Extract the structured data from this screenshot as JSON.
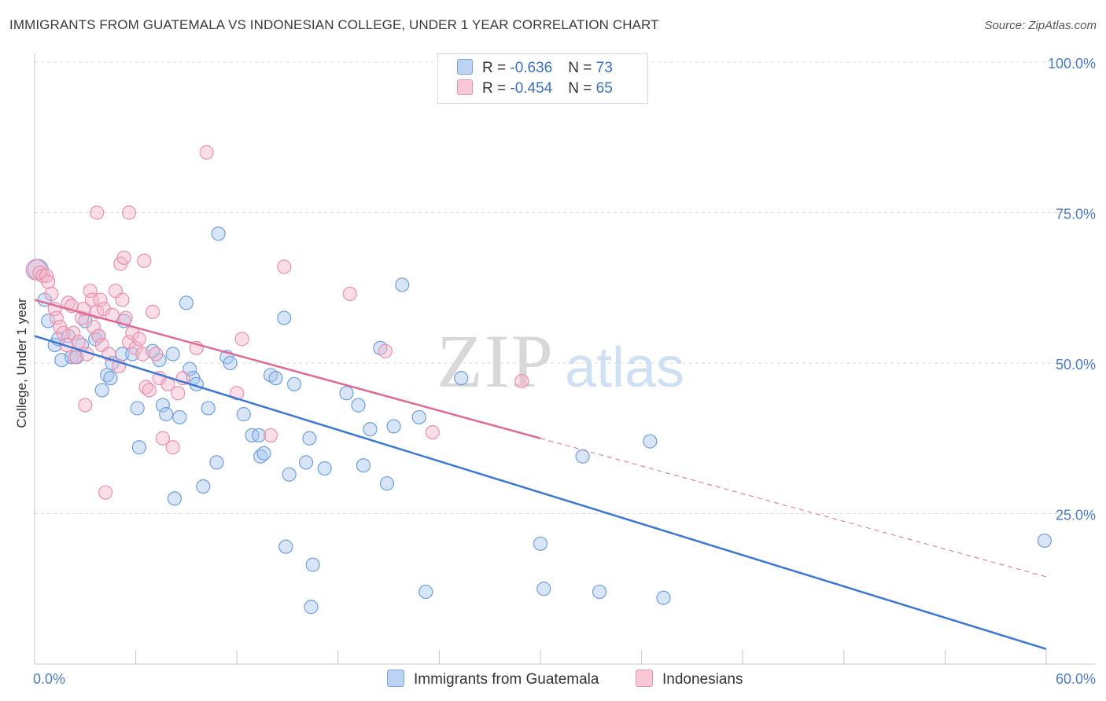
{
  "title": "IMMIGRANTS FROM GUATEMALA VS INDONESIAN COLLEGE, UNDER 1 YEAR CORRELATION CHART",
  "source": "Source: ZipAtlas.com",
  "watermark": {
    "zip": "ZIP",
    "atlas": "atlas"
  },
  "colors": {
    "blue": "#3a78d4",
    "blue_fill": "#a9c6ee",
    "pink": "#e06a93",
    "pink_fill": "#f4b6c9",
    "tick_text": "#4a7cc7"
  },
  "legend": {
    "rows": [
      {
        "r_label": "R = ",
        "r_value": "-0.636",
        "n_label": "N = ",
        "n_value": "73"
      },
      {
        "r_label": "R = ",
        "r_value": "-0.454",
        "n_label": "N = ",
        "n_value": "65"
      }
    ]
  },
  "bottom_legend": [
    "Immigrants from Guatemala",
    "Indonesians"
  ],
  "chart_data": {
    "type": "scatter",
    "ylabel": "College, Under 1 year",
    "xlim": [
      0,
      60
    ],
    "ylim": [
      0,
      100
    ],
    "x_tick_labels": [
      "0.0%",
      "60.0%"
    ],
    "y_ticks": [
      25,
      50,
      75,
      100
    ],
    "y_tick_labels": [
      "25.0%",
      "50.0%",
      "75.0%",
      "100.0%"
    ],
    "grid": true,
    "series": [
      {
        "name": "Immigrants from Guatemala",
        "color": "#3a78d4",
        "points": [
          [
            0.2,
            65.5
          ],
          [
            0.6,
            60.5
          ],
          [
            0.8,
            57.0
          ],
          [
            1.2,
            53.0
          ],
          [
            1.4,
            54.0
          ],
          [
            1.6,
            50.5
          ],
          [
            2.0,
            54.5
          ],
          [
            2.2,
            51.0
          ],
          [
            2.5,
            51.0
          ],
          [
            2.8,
            53.0
          ],
          [
            3.0,
            57.0
          ],
          [
            3.6,
            54.0
          ],
          [
            3.8,
            54.5
          ],
          [
            4.0,
            45.5
          ],
          [
            4.3,
            48.0
          ],
          [
            4.5,
            47.5
          ],
          [
            4.6,
            50.0
          ],
          [
            5.2,
            51.5
          ],
          [
            5.3,
            57.0
          ],
          [
            5.8,
            51.5
          ],
          [
            6.1,
            42.5
          ],
          [
            6.2,
            36.0
          ],
          [
            7.0,
            52.0
          ],
          [
            7.4,
            50.5
          ],
          [
            7.6,
            43.0
          ],
          [
            7.8,
            41.5
          ],
          [
            8.2,
            51.5
          ],
          [
            8.3,
            27.5
          ],
          [
            8.6,
            41.0
          ],
          [
            9.0,
            60.0
          ],
          [
            9.2,
            49.0
          ],
          [
            9.4,
            47.5
          ],
          [
            9.6,
            46.5
          ],
          [
            10.0,
            29.5
          ],
          [
            10.3,
            42.5
          ],
          [
            10.8,
            33.5
          ],
          [
            10.9,
            71.5
          ],
          [
            11.4,
            51.0
          ],
          [
            11.6,
            50.0
          ],
          [
            12.4,
            41.5
          ],
          [
            12.9,
            38.0
          ],
          [
            13.3,
            38.0
          ],
          [
            13.4,
            34.5
          ],
          [
            13.6,
            35.0
          ],
          [
            14.0,
            48.0
          ],
          [
            14.3,
            47.5
          ],
          [
            14.8,
            57.5
          ],
          [
            14.9,
            19.5
          ],
          [
            15.1,
            31.5
          ],
          [
            15.4,
            46.5
          ],
          [
            16.1,
            33.5
          ],
          [
            16.3,
            37.5
          ],
          [
            16.5,
            16.5
          ],
          [
            16.4,
            9.5
          ],
          [
            17.2,
            32.5
          ],
          [
            18.5,
            45.0
          ],
          [
            19.2,
            43.0
          ],
          [
            19.5,
            33.0
          ],
          [
            19.9,
            39.0
          ],
          [
            20.5,
            52.5
          ],
          [
            20.9,
            30.0
          ],
          [
            21.3,
            39.5
          ],
          [
            21.8,
            63.0
          ],
          [
            22.8,
            41.0
          ],
          [
            23.2,
            12.0
          ],
          [
            25.3,
            47.5
          ],
          [
            30.0,
            20.0
          ],
          [
            30.2,
            12.5
          ],
          [
            32.5,
            34.5
          ],
          [
            33.5,
            12.0
          ],
          [
            36.5,
            37.0
          ],
          [
            37.3,
            11.0
          ],
          [
            59.9,
            20.5
          ]
        ]
      },
      {
        "name": "Indonesians",
        "color": "#e06a93",
        "points": [
          [
            0.1,
            65.5
          ],
          [
            0.3,
            65.0
          ],
          [
            0.5,
            64.5
          ],
          [
            0.7,
            64.5
          ],
          [
            0.8,
            63.5
          ],
          [
            1.0,
            61.5
          ],
          [
            1.2,
            59.0
          ],
          [
            1.3,
            57.5
          ],
          [
            1.5,
            56.0
          ],
          [
            1.7,
            55.0
          ],
          [
            1.9,
            53.0
          ],
          [
            2.0,
            60.0
          ],
          [
            2.2,
            59.5
          ],
          [
            2.3,
            55.0
          ],
          [
            2.4,
            51.0
          ],
          [
            2.6,
            53.5
          ],
          [
            2.8,
            57.5
          ],
          [
            2.9,
            59.0
          ],
          [
            3.0,
            43.0
          ],
          [
            3.1,
            51.5
          ],
          [
            3.3,
            62.0
          ],
          [
            3.4,
            60.5
          ],
          [
            3.5,
            56.0
          ],
          [
            3.7,
            58.5
          ],
          [
            3.8,
            54.5
          ],
          [
            3.9,
            60.5
          ],
          [
            4.0,
            53.0
          ],
          [
            4.1,
            59.0
          ],
          [
            4.2,
            28.5
          ],
          [
            4.4,
            51.5
          ],
          [
            4.6,
            58.0
          ],
          [
            4.8,
            62.0
          ],
          [
            5.0,
            49.5
          ],
          [
            5.2,
            60.5
          ],
          [
            5.4,
            57.5
          ],
          [
            5.6,
            53.5
          ],
          [
            5.8,
            55.0
          ],
          [
            6.0,
            52.5
          ],
          [
            6.2,
            54.0
          ],
          [
            6.4,
            51.5
          ],
          [
            6.6,
            46.0
          ],
          [
            6.8,
            45.5
          ],
          [
            7.0,
            58.5
          ],
          [
            7.2,
            51.5
          ],
          [
            7.4,
            47.5
          ],
          [
            7.6,
            37.5
          ],
          [
            7.9,
            46.5
          ],
          [
            8.2,
            36.0
          ],
          [
            8.5,
            45.0
          ],
          [
            8.8,
            47.5
          ],
          [
            3.7,
            75.0
          ],
          [
            5.6,
            75.0
          ],
          [
            6.5,
            67.0
          ],
          [
            10.2,
            85.0
          ],
          [
            5.1,
            66.5
          ],
          [
            5.3,
            67.5
          ],
          [
            9.6,
            52.5
          ],
          [
            12.0,
            45.0
          ],
          [
            12.3,
            54.0
          ],
          [
            14.0,
            38.0
          ],
          [
            14.8,
            66.0
          ],
          [
            18.7,
            61.5
          ],
          [
            20.8,
            52.0
          ],
          [
            23.6,
            38.5
          ],
          [
            28.9,
            47.0
          ]
        ]
      }
    ],
    "trend_lines": [
      {
        "series": "Immigrants from Guatemala",
        "solid_from": [
          0,
          54.5
        ],
        "solid_to": [
          60,
          2.5
        ]
      },
      {
        "series": "Indonesians",
        "solid_from": [
          0,
          60.5
        ],
        "solid_to": [
          30,
          37.5
        ],
        "dashed_to": [
          60,
          14.5
        ]
      }
    ]
  }
}
